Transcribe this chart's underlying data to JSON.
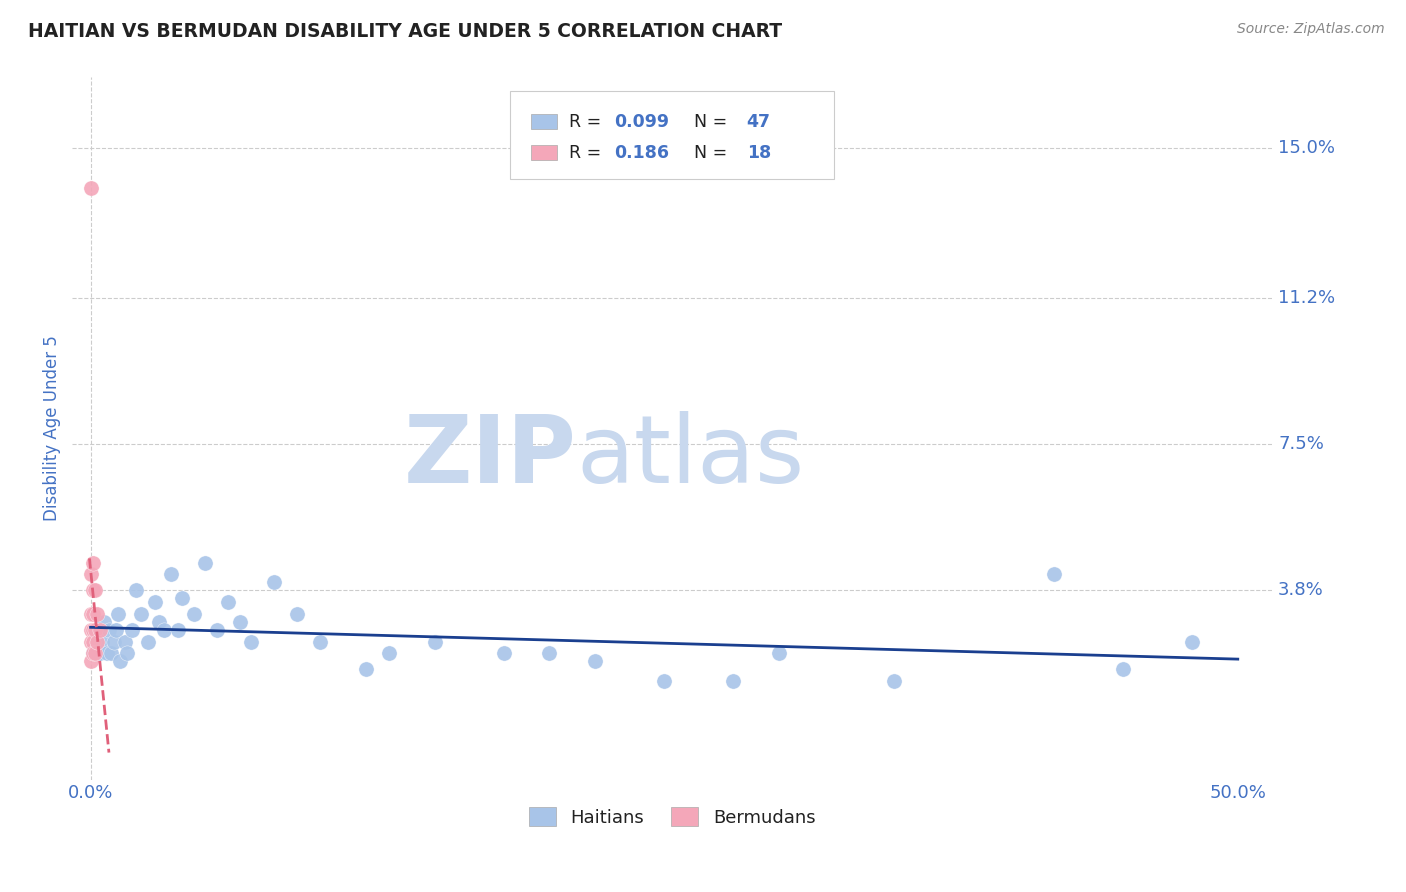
{
  "title": "HAITIAN VS BERMUDAN DISABILITY AGE UNDER 5 CORRELATION CHART",
  "source": "Source: ZipAtlas.com",
  "ylabel_label": "Disability Age Under 5",
  "y_tick_labels": [
    "15.0%",
    "11.2%",
    "7.5%",
    "3.8%"
  ],
  "y_tick_values": [
    0.15,
    0.112,
    0.075,
    0.038
  ],
  "xlim": [
    -0.008,
    0.515
  ],
  "ylim": [
    -0.01,
    0.168
  ],
  "color_haitian": "#a8c4e8",
  "color_bermudan": "#f4a7b9",
  "color_line_haitian": "#1a3f8f",
  "color_line_bermudan": "#e0607a",
  "watermark_zip": "#c8d8ee",
  "watermark_atlas": "#c8d8ee",
  "grid_color": "#cccccc",
  "title_color": "#222222",
  "tick_label_color": "#4472c4",
  "stats_box_color": "#dddddd",
  "haitians_x": [
    0.001,
    0.002,
    0.003,
    0.004,
    0.005,
    0.006,
    0.007,
    0.008,
    0.009,
    0.01,
    0.011,
    0.012,
    0.013,
    0.015,
    0.016,
    0.018,
    0.02,
    0.022,
    0.025,
    0.028,
    0.03,
    0.032,
    0.035,
    0.038,
    0.04,
    0.045,
    0.05,
    0.055,
    0.06,
    0.065,
    0.07,
    0.08,
    0.09,
    0.1,
    0.12,
    0.13,
    0.15,
    0.18,
    0.2,
    0.22,
    0.25,
    0.28,
    0.3,
    0.35,
    0.42,
    0.45,
    0.48
  ],
  "haitians_y": [
    0.022,
    0.025,
    0.028,
    0.022,
    0.025,
    0.03,
    0.022,
    0.028,
    0.022,
    0.025,
    0.028,
    0.032,
    0.02,
    0.025,
    0.022,
    0.028,
    0.038,
    0.032,
    0.025,
    0.035,
    0.03,
    0.028,
    0.042,
    0.028,
    0.036,
    0.032,
    0.045,
    0.028,
    0.035,
    0.03,
    0.025,
    0.04,
    0.032,
    0.025,
    0.018,
    0.022,
    0.025,
    0.022,
    0.022,
    0.02,
    0.015,
    0.015,
    0.022,
    0.015,
    0.042,
    0.018,
    0.025
  ],
  "bermudans_x": [
    0.0,
    0.0,
    0.0,
    0.0,
    0.0,
    0.0,
    0.001,
    0.001,
    0.001,
    0.001,
    0.001,
    0.001,
    0.002,
    0.002,
    0.002,
    0.003,
    0.003,
    0.004
  ],
  "bermudans_y": [
    0.14,
    0.042,
    0.032,
    0.028,
    0.025,
    0.02,
    0.045,
    0.038,
    0.032,
    0.028,
    0.025,
    0.022,
    0.038,
    0.028,
    0.022,
    0.032,
    0.025,
    0.028
  ],
  "bermudan_line_x0": -0.0005,
  "bermudan_line_x1": 0.008,
  "haitian_line_x0": 0.0,
  "haitian_line_x1": 0.5
}
